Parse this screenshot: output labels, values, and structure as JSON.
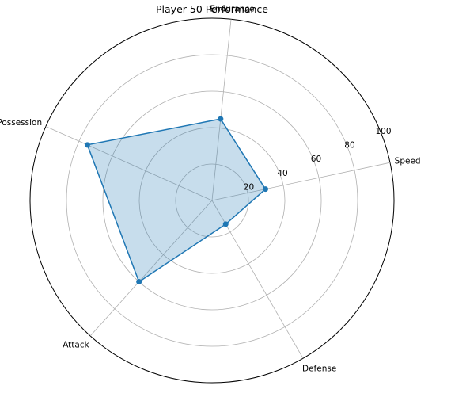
{
  "chart_data": {
    "type": "radar",
    "title": "Player 50 Performance",
    "categories": [
      "Speed",
      "Endurance",
      "Possession",
      "Attack",
      "Defense"
    ],
    "series": [
      {
        "values": [
          30,
          45,
          75,
          60,
          15
        ],
        "color": "#1f77b4",
        "fill_color": "#1f77b4",
        "fill_opacity": 0.25
      }
    ],
    "rlim": [
      0,
      100
    ],
    "r_ticks": [
      20,
      40,
      60,
      80,
      100
    ],
    "grid": true
  }
}
